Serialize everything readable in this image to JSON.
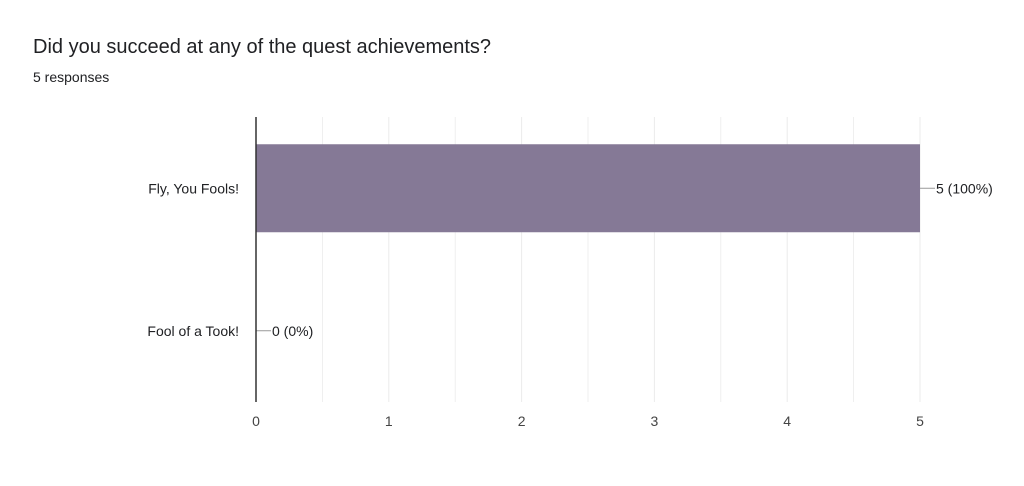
{
  "question": {
    "title": "Did you succeed at any of the quest achievements?",
    "response_count": "5 responses"
  },
  "colors": {
    "bar": "#857996",
    "grid": "#ebebeb",
    "axis": "#333333",
    "text": "#202124"
  },
  "chart_data": {
    "type": "bar",
    "orientation": "horizontal",
    "categories": [
      "Fly, You Fools!",
      "Fool of a Took!"
    ],
    "values": [
      5,
      0
    ],
    "data_labels": [
      "5 (100%)",
      "0 (0%)"
    ],
    "xlim": [
      0,
      5
    ],
    "x_ticks": [
      "0",
      "1",
      "2",
      "3",
      "4",
      "5"
    ],
    "grid": true,
    "legend": "none"
  }
}
